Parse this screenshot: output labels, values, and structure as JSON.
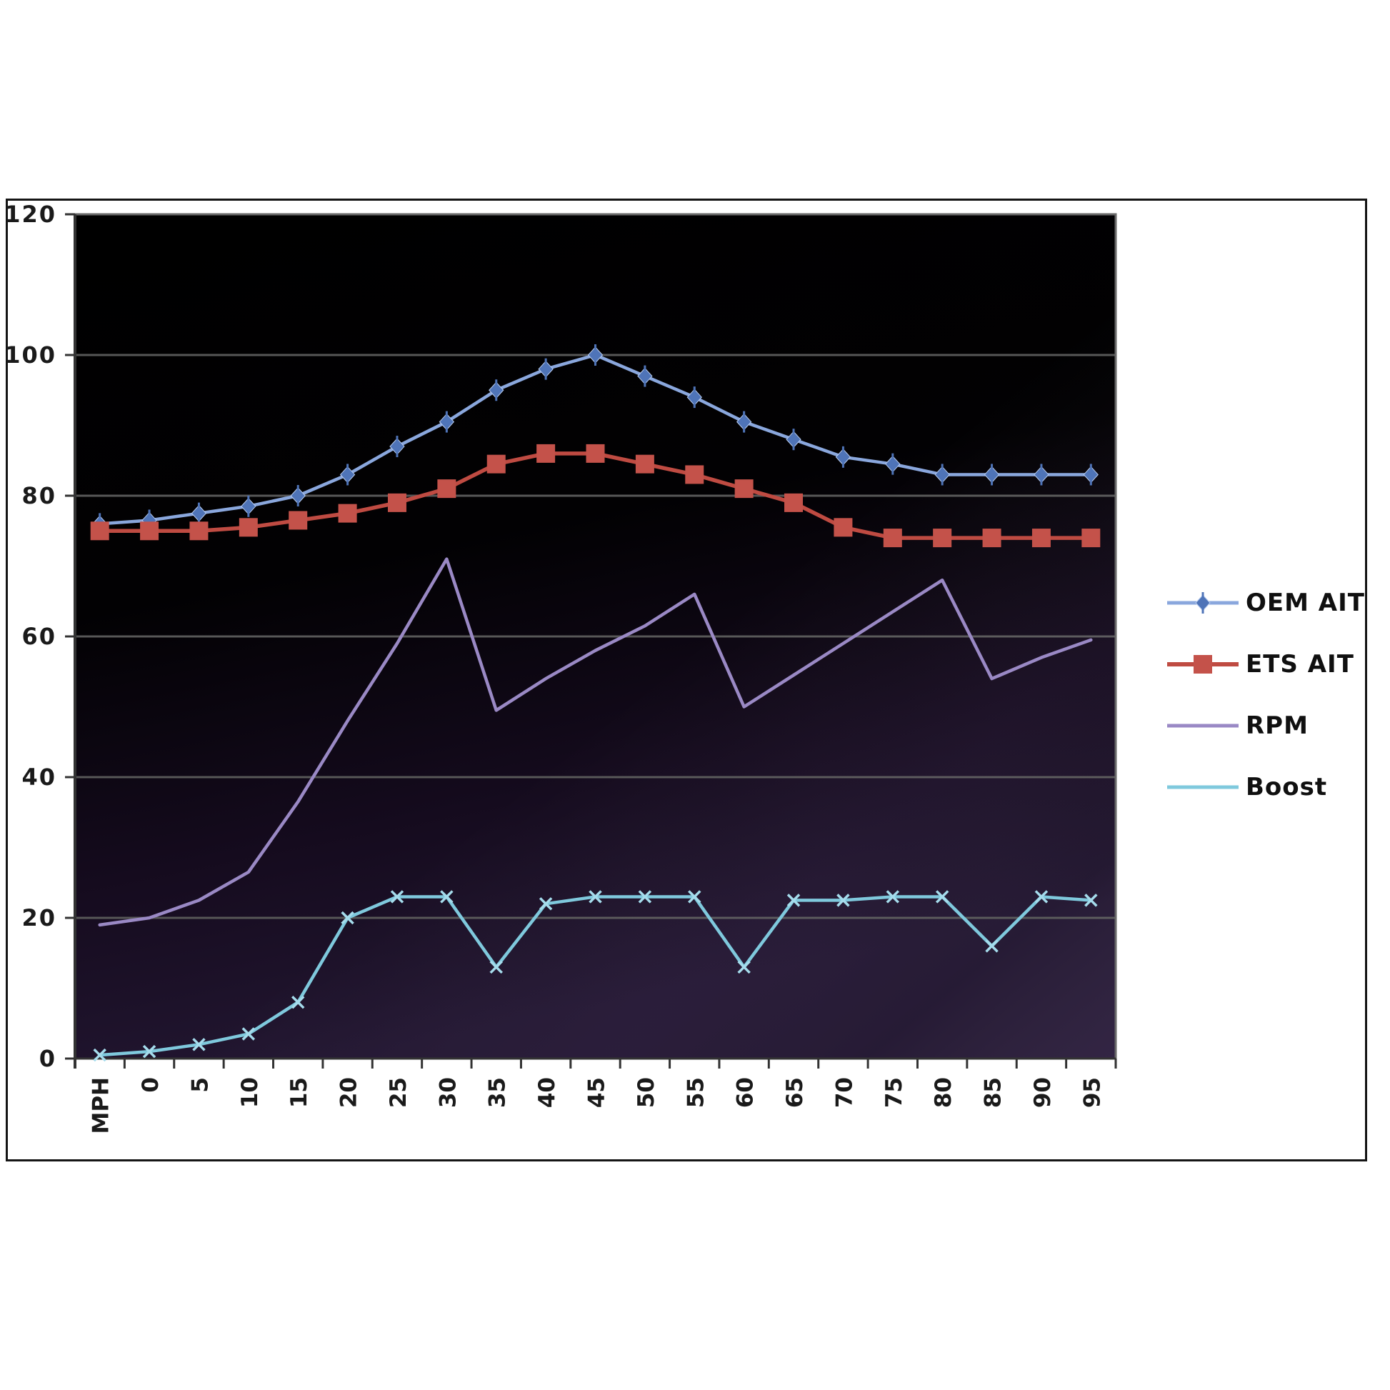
{
  "figure": {
    "background": "#ffffff",
    "frame_border_color": "#151515",
    "plot_bg_top": "#000000",
    "plot_bg_bottom": "#221631",
    "gridline_color": "#575757",
    "plot_border_color": "#6a6a6a",
    "tick_color": "#333333",
    "tick_label_color": "#1a1a1a"
  },
  "chart_data": {
    "type": "line",
    "title": "",
    "xlabel": "",
    "ylabel": "",
    "ylim": [
      0,
      120
    ],
    "yticks": [
      0,
      20,
      40,
      60,
      80,
      100,
      120
    ],
    "grid": "horizontal",
    "legend_position": "right",
    "x_tick_label_rotation": -90,
    "categories": [
      "MPH",
      "0",
      "5",
      "10",
      "15",
      "20",
      "25",
      "30",
      "35",
      "40",
      "45",
      "50",
      "55",
      "60",
      "65",
      "70",
      "75",
      "80",
      "85",
      "90",
      "95"
    ],
    "series": [
      {
        "name": "OEM AIT",
        "marker": "diamond",
        "line_color": "#8aa7dd",
        "marker_color": "#4f74b8",
        "values": [
          76,
          76.5,
          77.5,
          78.5,
          80,
          83,
          87,
          90.5,
          95,
          98,
          100,
          97,
          94,
          90.5,
          88,
          85.5,
          84.5,
          83,
          83,
          83,
          83
        ]
      },
      {
        "name": "ETS AIT",
        "marker": "square",
        "line_color": "#bf4b42",
        "marker_color": "#c4524a",
        "values": [
          75,
          75,
          75,
          75.5,
          76.5,
          77.5,
          79,
          81,
          84.5,
          86,
          86,
          84.5,
          83,
          81,
          79,
          75.5,
          74,
          74,
          74,
          74,
          74
        ]
      },
      {
        "name": "RPM",
        "marker": "x",
        "line_color": "#9a89c5",
        "marker_color": "#a röm493c9",
        "values": [
          19,
          20,
          22.5,
          26.5,
          36.5,
          48,
          59,
          71,
          49.5,
          54,
          58,
          61.5,
          66,
          50,
          54.5,
          59,
          63.5,
          68,
          54,
          57,
          59.5
        ]
      },
      {
        "name": "Boost",
        "marker": "x-small",
        "line_color": "#7fc9dd",
        "marker_color": "#a5dcec",
        "values": [
          0.5,
          1,
          2,
          3.5,
          8,
          20,
          23,
          23,
          13,
          22,
          23,
          23,
          23,
          13,
          22.5,
          22.5,
          23,
          23,
          16,
          23,
          22.5
        ]
      }
    ]
  }
}
